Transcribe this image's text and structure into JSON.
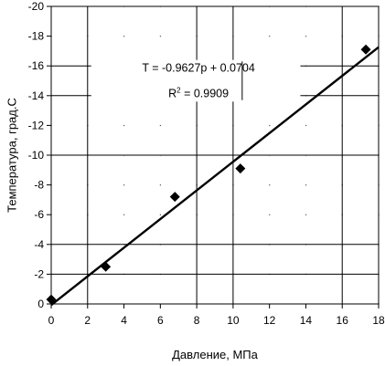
{
  "chart_data": {
    "type": "scatter",
    "xlabel": "Давление, МПа",
    "ylabel": "Температура, град.С",
    "xlim": [
      0,
      18
    ],
    "ylim": [
      0,
      -20
    ],
    "x_ticks": [
      0,
      2,
      4,
      6,
      8,
      10,
      12,
      14,
      16,
      18
    ],
    "x_tick_labels": [
      "0",
      "2",
      "4",
      "6",
      "8",
      "10",
      "12",
      "14",
      "16",
      "18"
    ],
    "y_ticks": [
      0,
      -2,
      -4,
      -6,
      -8,
      -10,
      -12,
      -14,
      -16,
      -18,
      -20
    ],
    "y_tick_labels": [
      "0",
      "-2",
      "-4",
      "-6",
      "-8",
      "-10",
      "-12",
      "-14",
      "-16",
      "-18",
      "-20"
    ],
    "x_major_grid": [
      2,
      8,
      10,
      16
    ],
    "y_major_grid": [
      -2,
      -4,
      -10,
      -14,
      -16
    ],
    "grid": true,
    "legend": false,
    "series": [
      {
        "marker": "diamond",
        "color": "#000000",
        "points": [
          {
            "x": 0.0,
            "y": -0.3
          },
          {
            "x": 3.0,
            "y": -2.5
          },
          {
            "x": 6.8,
            "y": -7.2
          },
          {
            "x": 10.4,
            "y": -9.1
          },
          {
            "x": 17.3,
            "y": -17.1
          }
        ]
      }
    ],
    "trendline": {
      "type": "linear",
      "slope": -0.9627,
      "intercept": 0.0704,
      "x_range": [
        0,
        18
      ],
      "color": "#000000"
    },
    "annotation": {
      "equation": "T = -0.9627p + 0.0704",
      "r2_prefix": "R",
      "r2_superscript": "2",
      "r2_value": " = 0.9909"
    }
  }
}
